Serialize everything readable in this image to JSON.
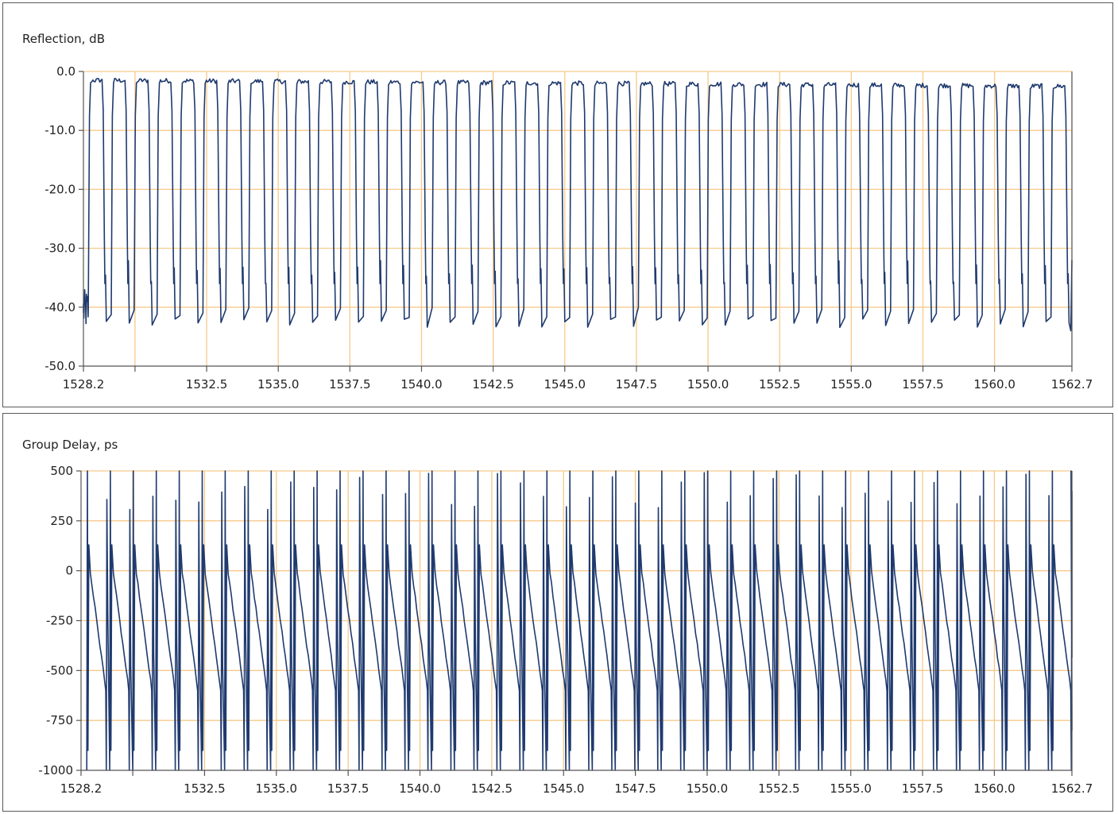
{
  "colors": {
    "series": "#1f3a6e",
    "grid": "#f7c98a",
    "axis": "#555555",
    "frame": "#5a5a5a",
    "text": "#222222"
  },
  "chart_data": [
    {
      "type": "line",
      "title": "Reflection, dB",
      "xlabel": "",
      "ylabel": "",
      "xlim": [
        1528.2,
        1562.7
      ],
      "ylim": [
        -50,
        0
      ],
      "x_ticks": [
        1528.2,
        1530.0,
        1532.5,
        1535.0,
        1537.5,
        1540.0,
        1542.5,
        1545.0,
        1547.5,
        1550.0,
        1552.5,
        1555.0,
        1557.5,
        1560.0,
        1562.7
      ],
      "x_tick_labels": [
        "1528.2",
        "",
        "1532.5",
        "1535.0",
        "1537.5",
        "1540.0",
        "1542.5",
        "1545.0",
        "1547.5",
        "1550.0",
        "1552.5",
        "1555.0",
        "1557.5",
        "1560.0",
        "1562.7"
      ],
      "y_ticks": [
        0,
        -10,
        -20,
        -30,
        -40,
        -50
      ],
      "y_tick_labels": [
        "0.0",
        "-10.0",
        "-20.0",
        "-30.0",
        "-40.0",
        "-50.0"
      ],
      "grid": true,
      "pattern": {
        "channel_count": 43,
        "channel_spacing": 0.8,
        "passband_level_start": -1.5,
        "passband_level_end": -2.5,
        "stopband_floor": -42,
        "secondary_dip": -30
      }
    },
    {
      "type": "line",
      "title": "Group Delay, ps",
      "xlabel": "",
      "ylabel": "",
      "xlim": [
        1528.2,
        1562.7
      ],
      "ylim": [
        -1000,
        500
      ],
      "x_ticks": [
        1528.2,
        1530.0,
        1532.5,
        1535.0,
        1537.5,
        1540.0,
        1542.5,
        1545.0,
        1547.5,
        1550.0,
        1552.5,
        1555.0,
        1557.5,
        1560.0,
        1562.7
      ],
      "x_tick_labels": [
        "1528.2",
        "",
        "1532.5",
        "1535.0",
        "1537.5",
        "1540.0",
        "1542.5",
        "1545.0",
        "1547.5",
        "1550.0",
        "1552.5",
        "1555.0",
        "1557.5",
        "1560.0",
        "1562.7"
      ],
      "y_ticks": [
        500,
        250,
        0,
        -250,
        -500,
        -750,
        -1000
      ],
      "y_tick_labels": [
        "500",
        "250",
        "0",
        "-250",
        "-500",
        "-750",
        "-1000"
      ],
      "grid": true,
      "pattern": {
        "channel_count": 43,
        "channel_spacing": 0.8,
        "slope_start": 50,
        "slope_end": -550,
        "spike_max": 500,
        "spike_min": -1000
      }
    }
  ]
}
